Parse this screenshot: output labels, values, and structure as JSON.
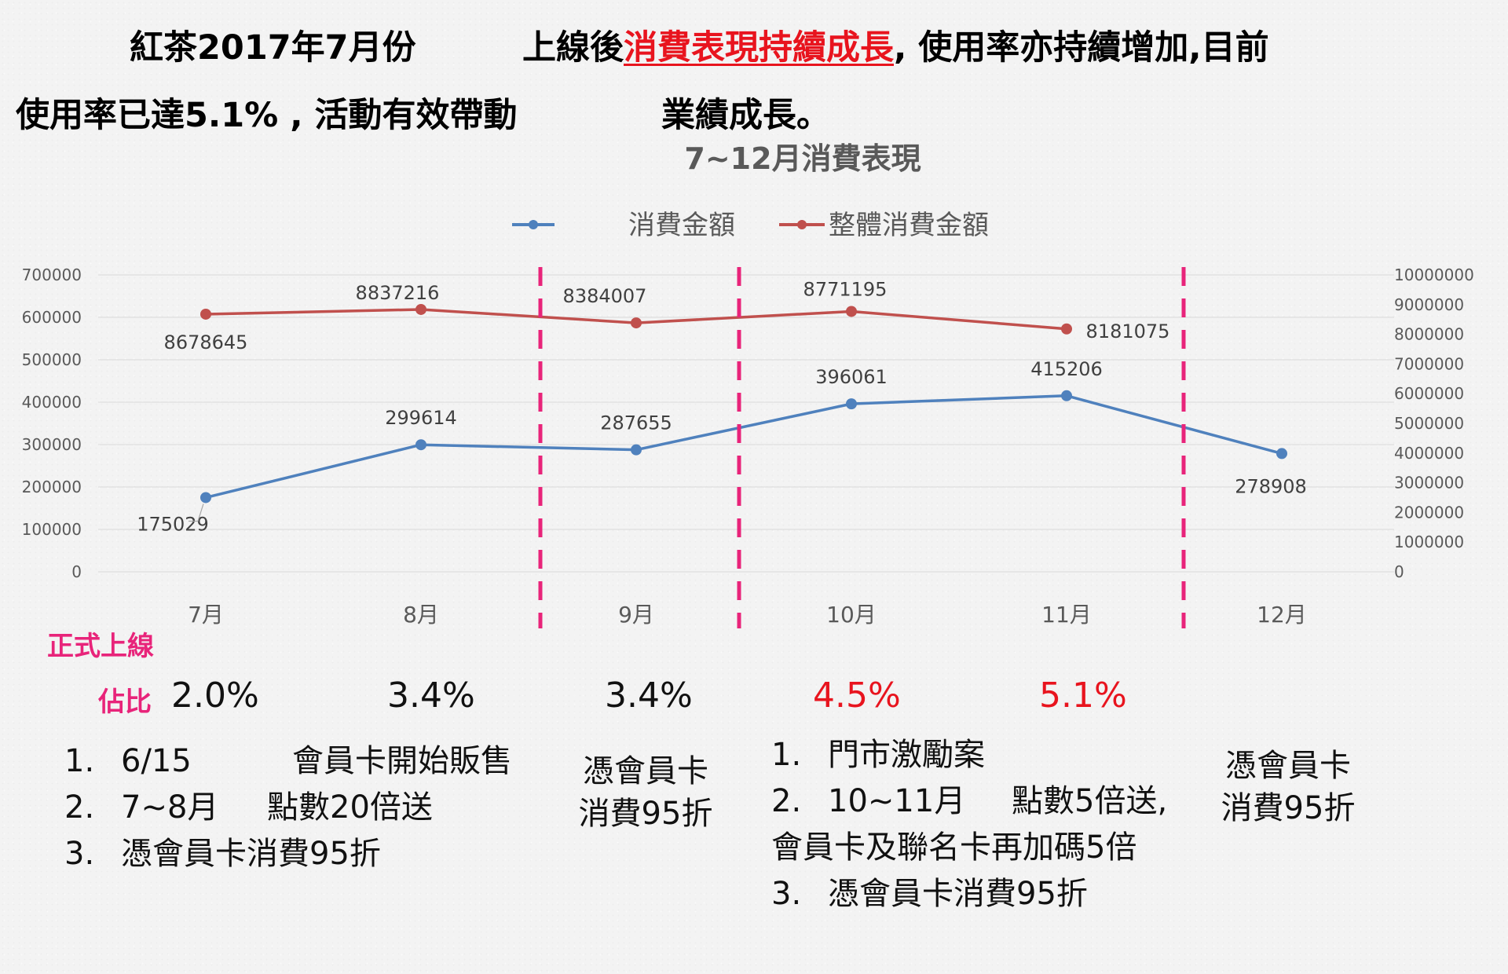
{
  "headline": {
    "l1a": "紅茶2017年7月份",
    "l1b": "上線後",
    "l1c": "消費表現持續成長",
    "l1d": ", 使用率亦持續增加,目前",
    "l2a": "使用率已達5.1% , 活動有效帶動",
    "l2b": "業績成長。"
  },
  "colors": {
    "blue": "#4f81bd",
    "red": "#c0504d",
    "pink": "#e8247a",
    "accent_red": "#e8141e"
  },
  "chart_data": {
    "type": "line",
    "title": "7~12月消費表現",
    "categories": [
      "7月",
      "8月",
      "9月",
      "10月",
      "11月",
      "12月"
    ],
    "series": [
      {
        "name": "消費金額",
        "axis": "left",
        "color": "#4f81bd",
        "values": [
          175029,
          299614,
          287655,
          396061,
          415206,
          278908
        ],
        "labels": [
          "175029",
          "299614",
          "287655",
          "396061",
          "415206",
          "278908"
        ]
      },
      {
        "name": "整體消費金額",
        "axis": "right",
        "color": "#c0504d",
        "values": [
          8678645,
          8837216,
          8384007,
          8771195,
          8181075,
          null
        ],
        "labels": [
          "8678645",
          "8837216",
          "8384007",
          "8771195",
          "8181075",
          ""
        ]
      }
    ],
    "y_left": {
      "range": [
        0,
        700000
      ],
      "ticks": [
        "0",
        "100000",
        "200000",
        "300000",
        "400000",
        "500000",
        "600000",
        "700000"
      ]
    },
    "y_right": {
      "range": [
        0,
        10000000
      ],
      "ticks": [
        "0",
        "1000000",
        "2000000",
        "3000000",
        "4000000",
        "5000000",
        "6000000",
        "7000000",
        "8000000",
        "9000000",
        "10000000"
      ]
    },
    "grid": true,
    "legend": "top-center"
  },
  "launch_label": "正式上線",
  "share_label": "佔比",
  "shares": [
    "2.0%",
    "3.4%",
    "3.4%",
    "4.5%",
    "5.1%"
  ],
  "notes": {
    "col1": [
      {
        "num": "1.",
        "a": "6/15",
        "b": "會員卡開始販售"
      },
      {
        "num": "2.",
        "a": "7~8月",
        "b": "點數20倍送"
      },
      {
        "num": "3.",
        "a": "憑會員卡消費95折",
        "b": ""
      }
    ],
    "col2": [
      "憑會員卡",
      "消費95折"
    ],
    "col3": [
      {
        "num": "1.",
        "a": "門市激勵案",
        "b": ""
      },
      {
        "num": "2.",
        "a": "10~11月",
        "b": "點數5倍送,"
      },
      {
        "num": "",
        "a": "會員卡及聯名卡再加碼5倍",
        "b": ""
      },
      {
        "num": "3.",
        "a": "憑會員卡消費95折",
        "b": ""
      }
    ],
    "col4": [
      "憑會員卡",
      "消費95折"
    ]
  }
}
